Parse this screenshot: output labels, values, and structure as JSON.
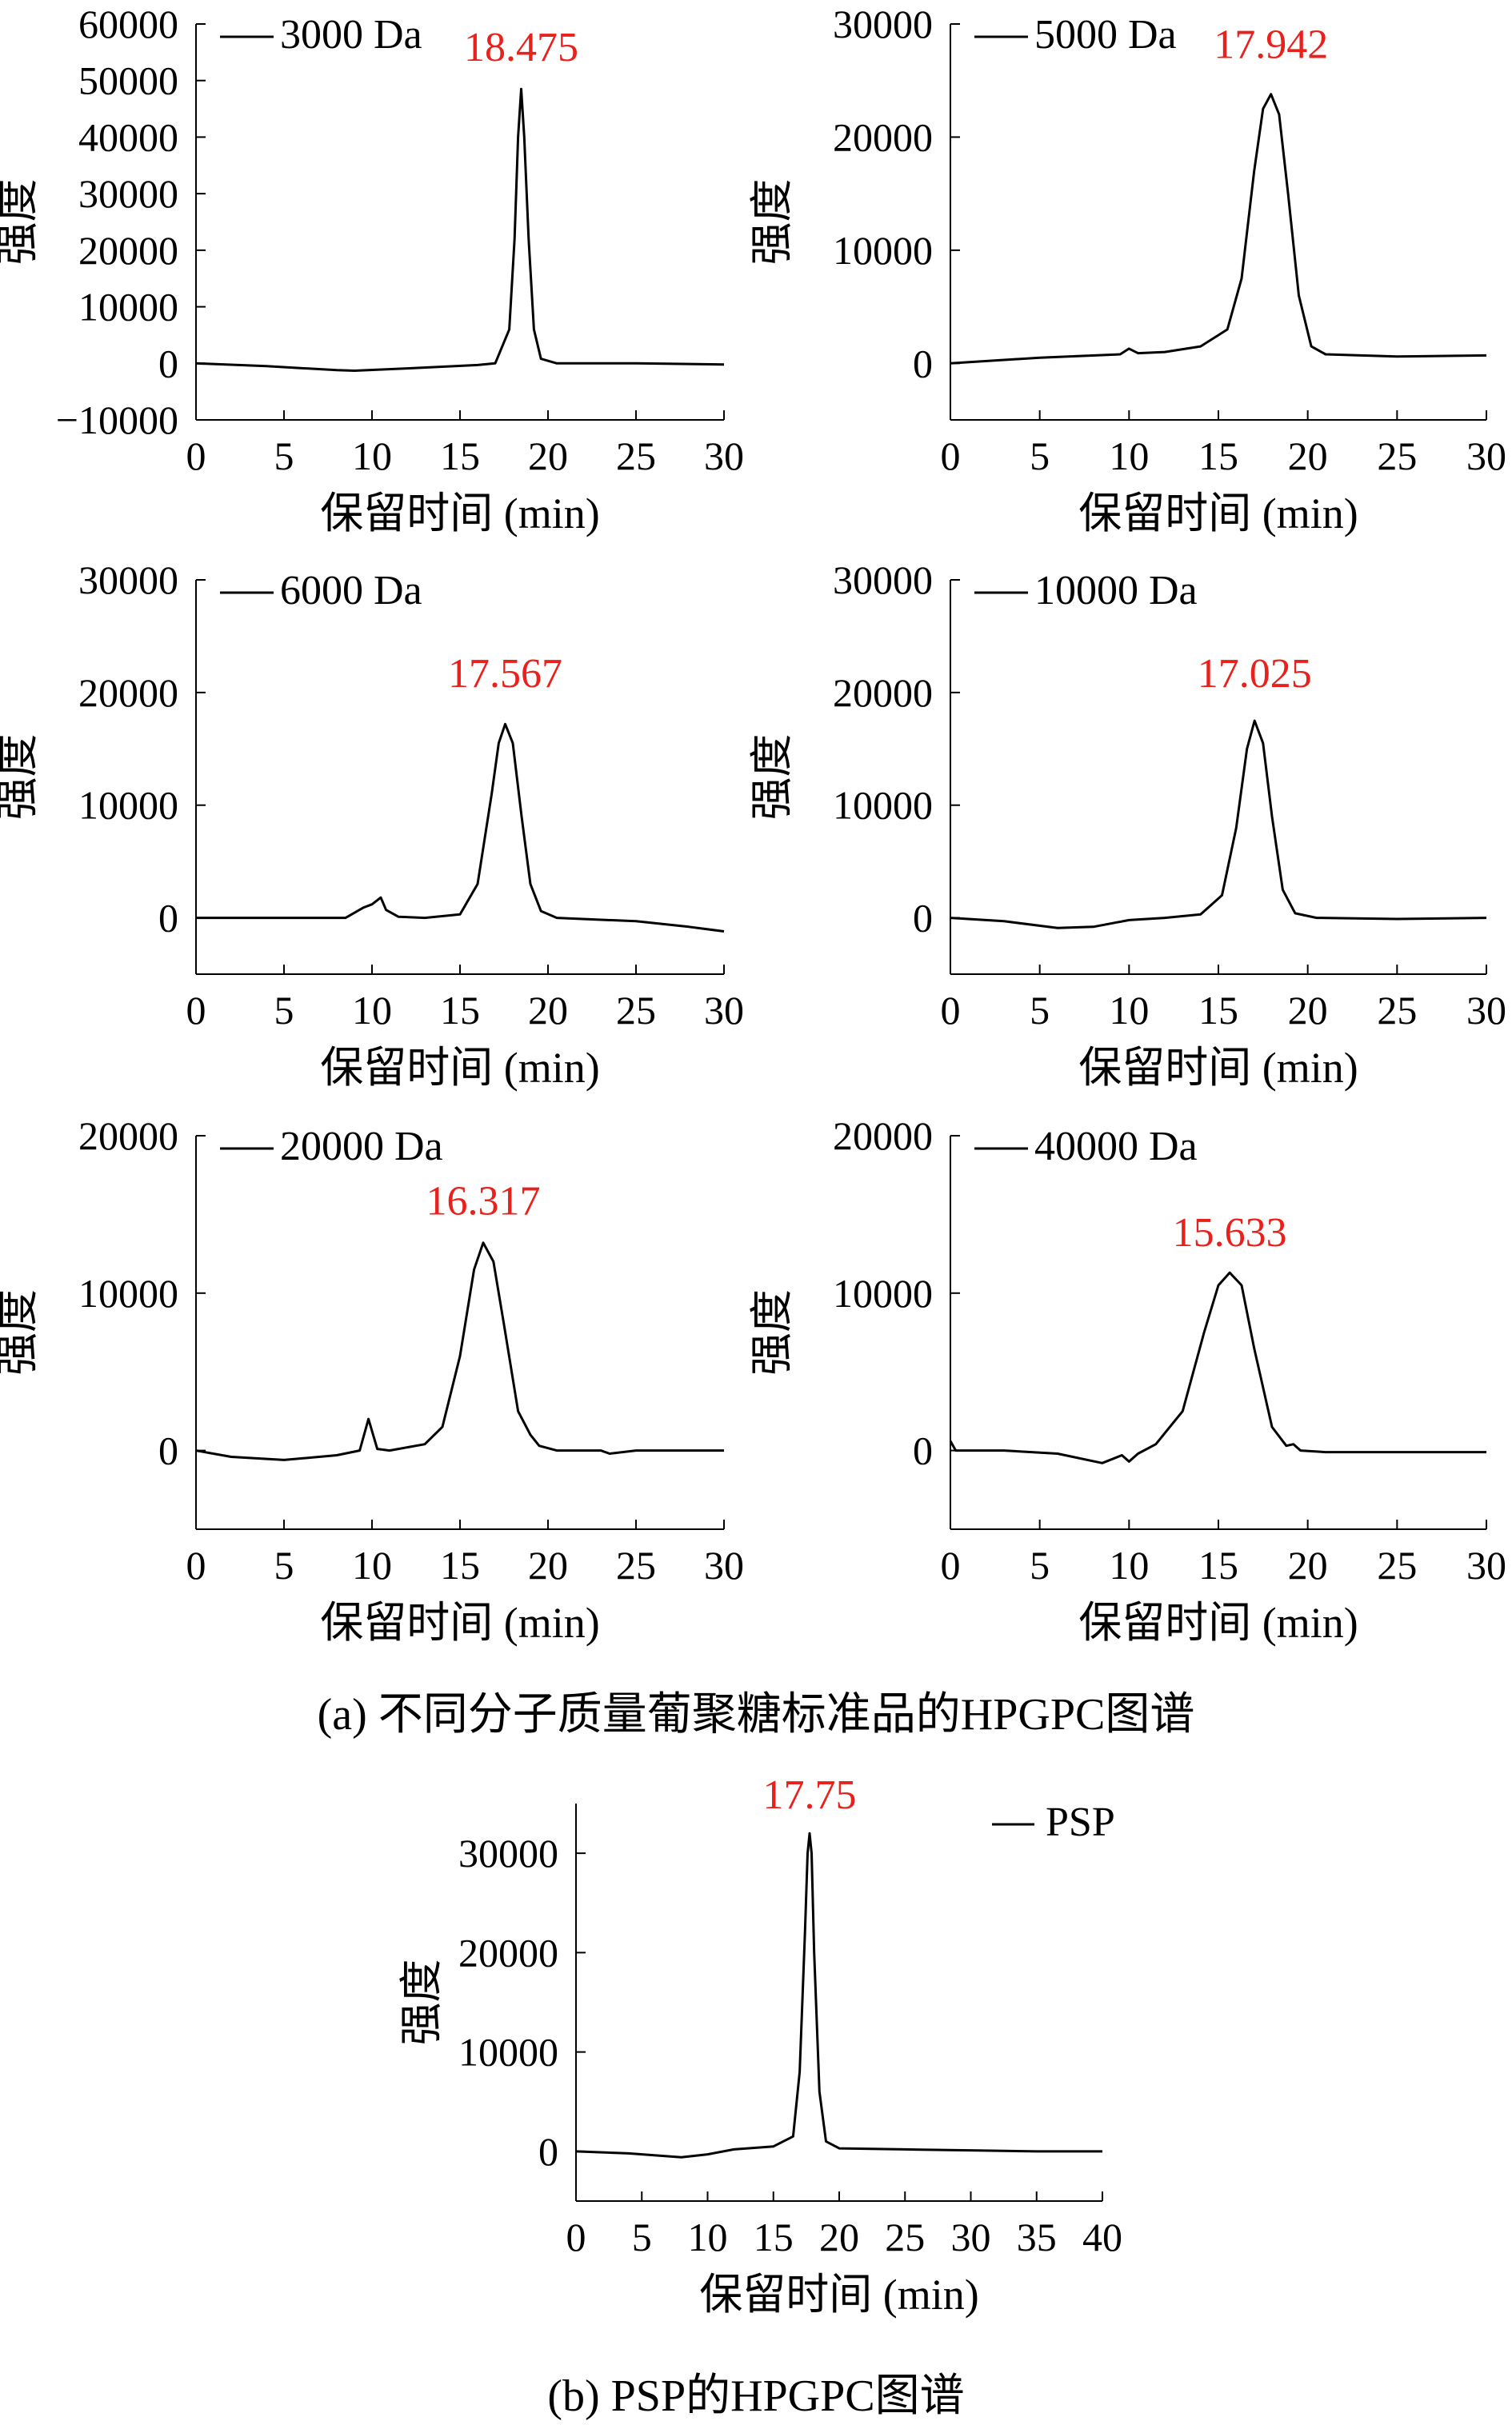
{
  "captions": {
    "a": "(a) 不同分子质量葡聚糖标准品的HPGPC图谱",
    "b": "(b) PSP的HPGPC图谱"
  },
  "colors": {
    "line": "#000000",
    "peak_label": "#e8211c"
  },
  "chart_data": [
    {
      "type": "line",
      "legend": "3000 Da",
      "legend_placement": "top-left",
      "xlabel": "保留时间 (min)",
      "ylabel": "强度",
      "xlim": [
        0,
        30
      ],
      "ylim": [
        -10000,
        60000
      ],
      "xticks": [
        0,
        5,
        10,
        15,
        20,
        25,
        30
      ],
      "yticks": [
        -10000,
        0,
        10000,
        20000,
        30000,
        40000,
        50000,
        60000
      ],
      "ytick_labels": [
        "−10000",
        "0",
        "10000",
        "20000",
        "30000",
        "40000",
        "50000",
        "60000"
      ],
      "peak_label": "18.475",
      "peak_label_x": 18.475,
      "peak_label_y": 53500,
      "series": [
        {
          "x": [
            0,
            4,
            8,
            9,
            12,
            16,
            17,
            17.8,
            18.1,
            18.3,
            18.475,
            18.65,
            18.9,
            19.2,
            19.6,
            20.5,
            25,
            30
          ],
          "y": [
            0,
            -500,
            -1200,
            -1300,
            -900,
            -300,
            0,
            6000,
            22000,
            40000,
            48500,
            40000,
            22000,
            6000,
            800,
            0,
            0,
            -200
          ]
        }
      ]
    },
    {
      "type": "line",
      "legend": "5000 Da",
      "legend_placement": "top-left",
      "xlabel": "保留时间 (min)",
      "ylabel": "强度",
      "xlim": [
        0,
        30
      ],
      "ylim": [
        -5000,
        30000
      ],
      "xticks": [
        0,
        5,
        10,
        15,
        20,
        25,
        30
      ],
      "yticks": [
        0,
        10000,
        20000,
        30000
      ],
      "ytick_labels": [
        "0",
        "10000",
        "20000",
        "30000"
      ],
      "peak_label": "17.942",
      "peak_label_x": 17.942,
      "peak_label_y": 27000,
      "series": [
        {
          "x": [
            0,
            5,
            9.5,
            10,
            10.5,
            12,
            14,
            15.5,
            16.3,
            17,
            17.5,
            17.942,
            18.4,
            18.9,
            19.5,
            20.2,
            21,
            25,
            30
          ],
          "y": [
            0,
            500,
            800,
            1300,
            900,
            1000,
            1500,
            3000,
            7500,
            17000,
            22500,
            23800,
            22000,
            15000,
            6000,
            1500,
            800,
            600,
            700
          ]
        }
      ]
    },
    {
      "type": "line",
      "legend": "6000 Da",
      "legend_placement": "top-left",
      "xlabel": "保留时间 (min)",
      "ylabel": "强度",
      "xlim": [
        0,
        30
      ],
      "ylim": [
        -5000,
        30000
      ],
      "xticks": [
        0,
        5,
        10,
        15,
        20,
        25,
        30
      ],
      "yticks": [
        0,
        10000,
        20000,
        30000
      ],
      "ytick_labels": [
        "0",
        "10000",
        "20000",
        "30000"
      ],
      "peak_label": "17.567",
      "peak_label_x": 17.567,
      "peak_label_y": 20500,
      "series": [
        {
          "x": [
            0,
            5,
            8.5,
            9.5,
            10,
            10.5,
            10.8,
            11.5,
            13,
            15,
            16,
            16.8,
            17.2,
            17.567,
            18,
            18.5,
            19,
            19.6,
            20.5,
            25,
            28,
            30
          ],
          "y": [
            0,
            0,
            0,
            900,
            1200,
            1800,
            700,
            100,
            0,
            300,
            3000,
            11000,
            15500,
            17200,
            15500,
            9000,
            3000,
            600,
            0,
            -300,
            -800,
            -1200
          ]
        }
      ]
    },
    {
      "type": "line",
      "legend": "10000 Da",
      "legend_placement": "top-left",
      "xlabel": "保留时间 (min)",
      "ylabel": "强度",
      "xlim": [
        0,
        30
      ],
      "ylim": [
        -5000,
        30000
      ],
      "xticks": [
        0,
        5,
        10,
        15,
        20,
        25,
        30
      ],
      "yticks": [
        0,
        10000,
        20000,
        30000
      ],
      "ytick_labels": [
        "0",
        "10000",
        "20000",
        "30000"
      ],
      "peak_label": "17.025",
      "peak_label_x": 17.025,
      "peak_label_y": 20500,
      "series": [
        {
          "x": [
            0,
            3,
            6,
            8,
            10,
            12,
            14,
            15.2,
            16,
            16.6,
            17.025,
            17.5,
            18,
            18.6,
            19.3,
            20.5,
            25,
            30
          ],
          "y": [
            0,
            -300,
            -900,
            -800,
            -200,
            0,
            300,
            2000,
            8000,
            15000,
            17500,
            15500,
            9000,
            2500,
            400,
            0,
            -100,
            0
          ]
        }
      ]
    },
    {
      "type": "line",
      "legend": "20000 Da",
      "legend_placement": "top-left",
      "xlabel": "保留时间 (min)",
      "ylabel": "强度",
      "xlim": [
        0,
        30
      ],
      "ylim": [
        -5000,
        20000
      ],
      "xticks": [
        0,
        5,
        10,
        15,
        20,
        25,
        30
      ],
      "yticks": [
        0,
        10000,
        20000
      ],
      "ytick_labels": [
        "0",
        "10000",
        "20000"
      ],
      "peak_label": "16.317",
      "peak_label_x": 16.317,
      "peak_label_y": 15000,
      "series": [
        {
          "x": [
            0,
            2,
            5,
            8,
            9.3,
            9.8,
            10.3,
            11,
            13,
            14,
            15,
            15.8,
            16.317,
            16.9,
            17.5,
            18.3,
            19,
            19.5,
            20.5,
            23,
            23.5,
            25,
            30
          ],
          "y": [
            0,
            -400,
            -600,
            -300,
            0,
            2000,
            100,
            0,
            400,
            1500,
            6000,
            11500,
            13200,
            12000,
            8000,
            2500,
            1000,
            300,
            0,
            0,
            -200,
            0,
            0
          ]
        }
      ]
    },
    {
      "type": "line",
      "legend": "40000 Da",
      "legend_placement": "top-left",
      "xlabel": "保留时间 (min)",
      "ylabel": "强度",
      "xlim": [
        0,
        30
      ],
      "ylim": [
        -5000,
        20000
      ],
      "xticks": [
        0,
        5,
        10,
        15,
        20,
        25,
        30
      ],
      "yticks": [
        0,
        10000,
        20000
      ],
      "ytick_labels": [
        "0",
        "10000",
        "20000"
      ],
      "peak_label": "15.633",
      "peak_label_x": 15.633,
      "peak_label_y": 13000,
      "series": [
        {
          "x": [
            0,
            0.3,
            3,
            6,
            8.5,
            9.6,
            10,
            10.5,
            11.5,
            13,
            14.2,
            15,
            15.633,
            16.3,
            17,
            18,
            18.8,
            19.2,
            19.6,
            21,
            25,
            30
          ],
          "y": [
            600,
            0,
            0,
            -200,
            -800,
            -300,
            -700,
            -200,
            400,
            2500,
            7500,
            10500,
            11300,
            10500,
            6500,
            1500,
            300,
            400,
            0,
            -100,
            -100,
            -100
          ]
        }
      ]
    },
    {
      "type": "line",
      "legend": "PSP",
      "legend_placement": "top-right",
      "xlabel": "保留时间 (min)",
      "ylabel": "强度",
      "xlim": [
        0,
        40
      ],
      "ylim": [
        -5000,
        35000
      ],
      "xticks": [
        0,
        5,
        10,
        15,
        20,
        25,
        30,
        35,
        40
      ],
      "yticks": [
        0,
        10000,
        20000,
        30000
      ],
      "ytick_labels": [
        "0",
        "10000",
        "20000",
        "30000"
      ],
      "peak_label": "17.75",
      "peak_label_x": 17.75,
      "peak_label_y": 34500,
      "series": [
        {
          "x": [
            0,
            4,
            8,
            10,
            12,
            15,
            16.5,
            17,
            17.4,
            17.6,
            17.75,
            17.9,
            18.1,
            18.5,
            19,
            20,
            25,
            30,
            35,
            40
          ],
          "y": [
            0,
            -200,
            -600,
            -300,
            200,
            500,
            1500,
            8000,
            22000,
            30000,
            32000,
            30000,
            20000,
            6000,
            1000,
            300,
            200,
            100,
            0,
            0
          ]
        }
      ]
    }
  ]
}
